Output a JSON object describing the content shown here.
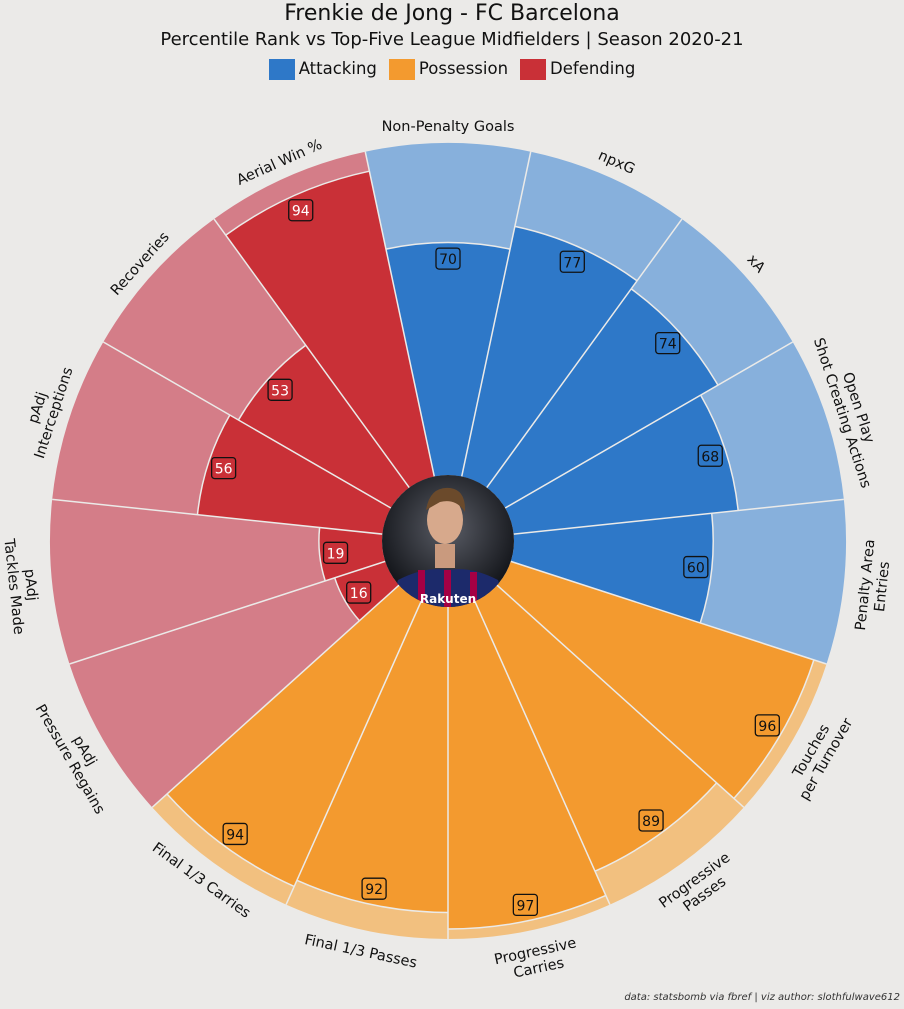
{
  "chart_data": {
    "type": "polar-bar",
    "title": "Frenkie de Jong - FC Barcelona",
    "subtitle": "Percentile Rank vs Top-Five League Midfielders | Season 2020-21",
    "legend": [
      {
        "name": "Attacking",
        "color": "#2e78c8"
      },
      {
        "name": "Possession",
        "color": "#f39a2f"
      },
      {
        "name": "Defending",
        "color": "#c93037"
      }
    ],
    "range": [
      0,
      100
    ],
    "categories": [
      {
        "label": "Non-Penalty Goals",
        "value": 70,
        "group": "Attacking"
      },
      {
        "label": "npxG",
        "value": 77,
        "group": "Attacking"
      },
      {
        "label": "xA",
        "value": 74,
        "group": "Attacking"
      },
      {
        "label": "Open Play\nShot Creating Actions",
        "value": 68,
        "group": "Attacking"
      },
      {
        "label": "Penalty Area\nEntries",
        "value": 60,
        "group": "Attacking"
      },
      {
        "label": "Touches\nper Turnover",
        "value": 96,
        "group": "Possession"
      },
      {
        "label": "Progressive\nPasses",
        "value": 89,
        "group": "Possession"
      },
      {
        "label": "Progressive\nCarries",
        "value": 97,
        "group": "Possession"
      },
      {
        "label": "Final 1/3 Passes",
        "value": 92,
        "group": "Possession"
      },
      {
        "label": "Final 1/3 Carries",
        "value": 94,
        "group": "Possession"
      },
      {
        "label": "pAdj\nPressure Regains",
        "value": 16,
        "group": "Defending"
      },
      {
        "label": "pAdj\nTackles Made",
        "value": 19,
        "group": "Defending"
      },
      {
        "label": "pAdj\nInterceptions",
        "value": 56,
        "group": "Defending"
      },
      {
        "label": "Recoveries",
        "value": 53,
        "group": "Defending"
      },
      {
        "label": "Aerial Win %",
        "value": 94,
        "group": "Defending"
      }
    ],
    "center_image_caption": "Rakuten"
  },
  "footer": "data: statsbomb via fbref | viz author: slothfulwave612"
}
